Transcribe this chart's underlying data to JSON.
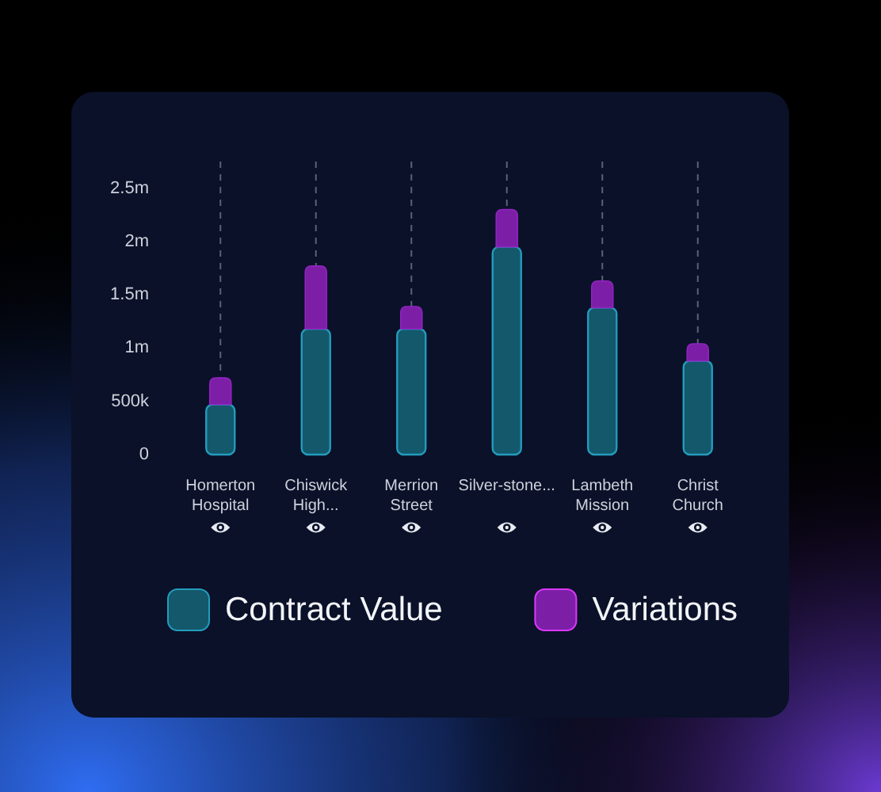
{
  "chart_data": {
    "type": "bar",
    "stacked": true,
    "categories": [
      "Homerton Hospital",
      "Chiswick High...",
      "Merrion Street",
      "Silver-stone...",
      "Lambeth Mission",
      "Christ Church"
    ],
    "series": [
      {
        "name": "Contract Value",
        "color": "#14586b",
        "values": [
          470000,
          1180000,
          1180000,
          1950000,
          1380000,
          880000
        ]
      },
      {
        "name": "Variations",
        "color": "#7c1fa6",
        "values": [
          250000,
          590000,
          210000,
          350000,
          250000,
          160000
        ]
      }
    ],
    "ylim": [
      0,
      2750000
    ],
    "yticks": [
      0,
      {
        "value": 500000,
        "label": "500k"
      },
      {
        "value": 1000000,
        "label": "1m"
      },
      {
        "value": 1500000,
        "label": "1.5m"
      },
      {
        "value": 2000000,
        "label": "2m"
      },
      {
        "value": 2500000,
        "label": "2.5m"
      }
    ],
    "grid": "x",
    "legend": "bottom"
  }
}
